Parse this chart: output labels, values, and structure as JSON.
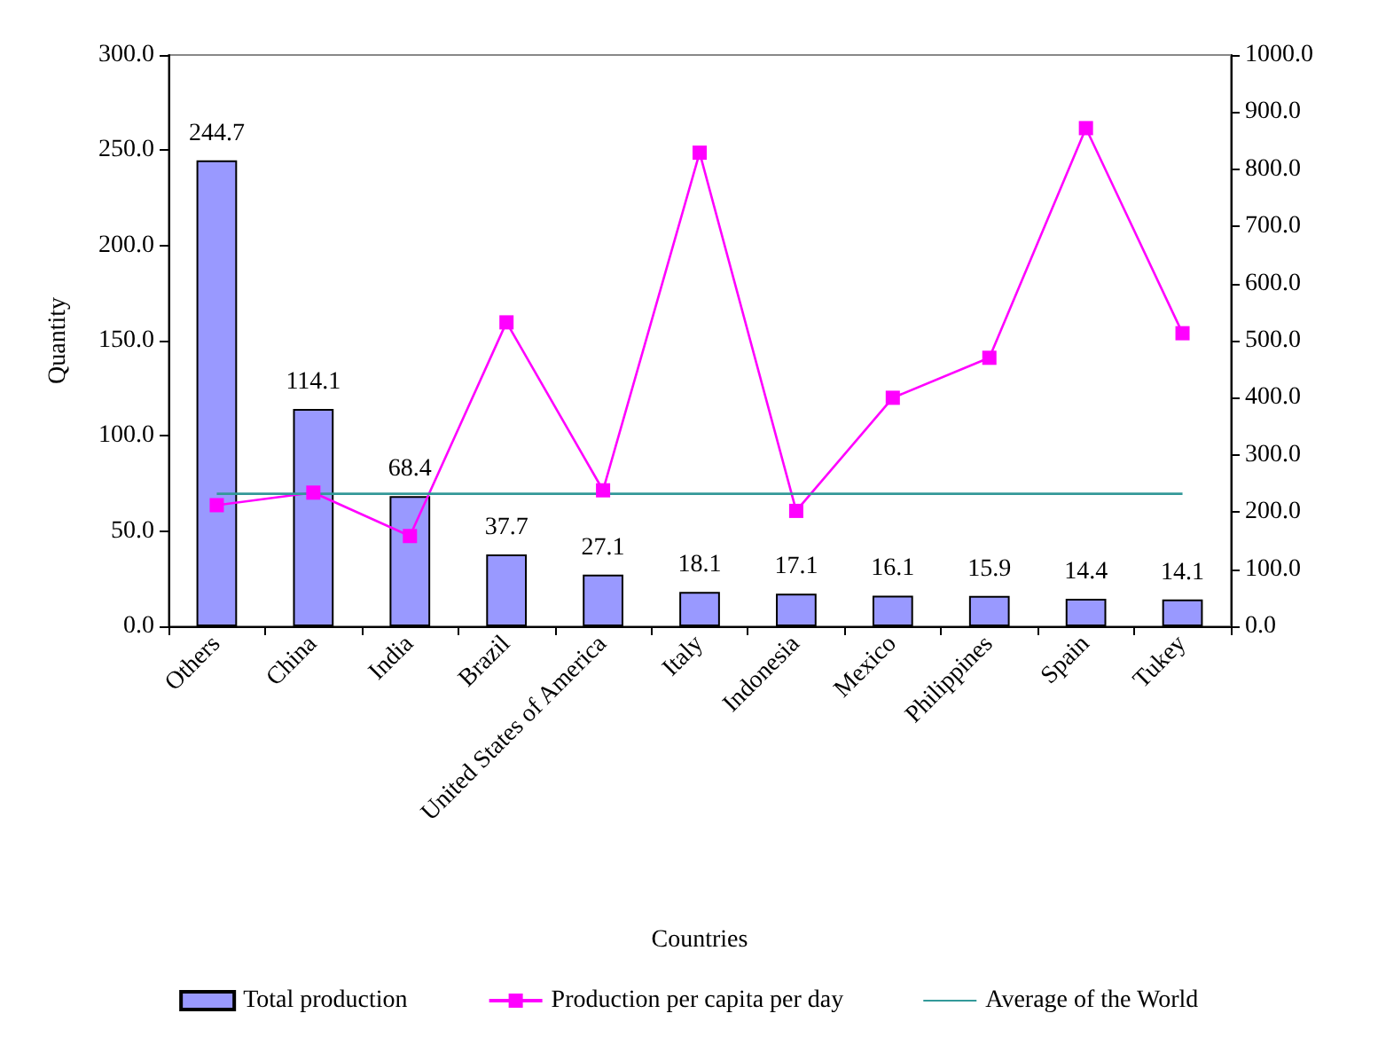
{
  "chart_data": {
    "type": "bar",
    "xlabel": "Countries",
    "ylabel": "Quantity",
    "categories": [
      "Others",
      "China",
      "India",
      "Brazil",
      "United States of America",
      "Italy",
      "Indonesia",
      "Mexico",
      "Philippines",
      "Spain",
      "Tukey"
    ],
    "series": [
      {
        "name": "Total production",
        "color": "#9999ff",
        "values": [
          244.7,
          114.1,
          68.4,
          37.7,
          27.1,
          18.1,
          17.1,
          16.1,
          15.9,
          14.4,
          14.1
        ],
        "data_labels": true
      },
      {
        "name": "Production per capita per day",
        "type": "line",
        "axis": "y2",
        "color": "#ff00ff",
        "marker": "square",
        "values": [
          212,
          234,
          158,
          532,
          238,
          829,
          202,
          400,
          470,
          872,
          513
        ]
      },
      {
        "name": "Average of the World",
        "type": "line",
        "axis": "y2",
        "color": "#339999",
        "marker": "none",
        "values": [
          232,
          232,
          232,
          232,
          232,
          232,
          232,
          232,
          232,
          232,
          232
        ]
      }
    ],
    "ylim": [
      0,
      300
    ],
    "yticks": [
      {
        "value": 0,
        "label": "0.0"
      },
      {
        "value": 50,
        "label": "50.0"
      },
      {
        "value": 100,
        "label": "100.0"
      },
      {
        "value": 150,
        "label": "150.0"
      },
      {
        "value": 200,
        "label": "200.0"
      },
      {
        "value": 250,
        "label": "250.0"
      },
      {
        "value": 300,
        "label": "300.0"
      }
    ],
    "y2lim": [
      0,
      1000
    ],
    "y2ticks": [
      {
        "value": 0,
        "label": "0.0"
      },
      {
        "value": 100,
        "label": "100.0"
      },
      {
        "value": 200,
        "label": "200.0"
      },
      {
        "value": 300,
        "label": "300.0"
      },
      {
        "value": 400,
        "label": "400.0"
      },
      {
        "value": 500,
        "label": "500.0"
      },
      {
        "value": 600,
        "label": "600.0"
      },
      {
        "value": 700,
        "label": "700.0"
      },
      {
        "value": 800,
        "label": "800.0"
      },
      {
        "value": 900,
        "label": "900.0"
      },
      {
        "value": 1000,
        "label": "1000.0"
      }
    ],
    "grid": false,
    "legend": "bottom"
  }
}
